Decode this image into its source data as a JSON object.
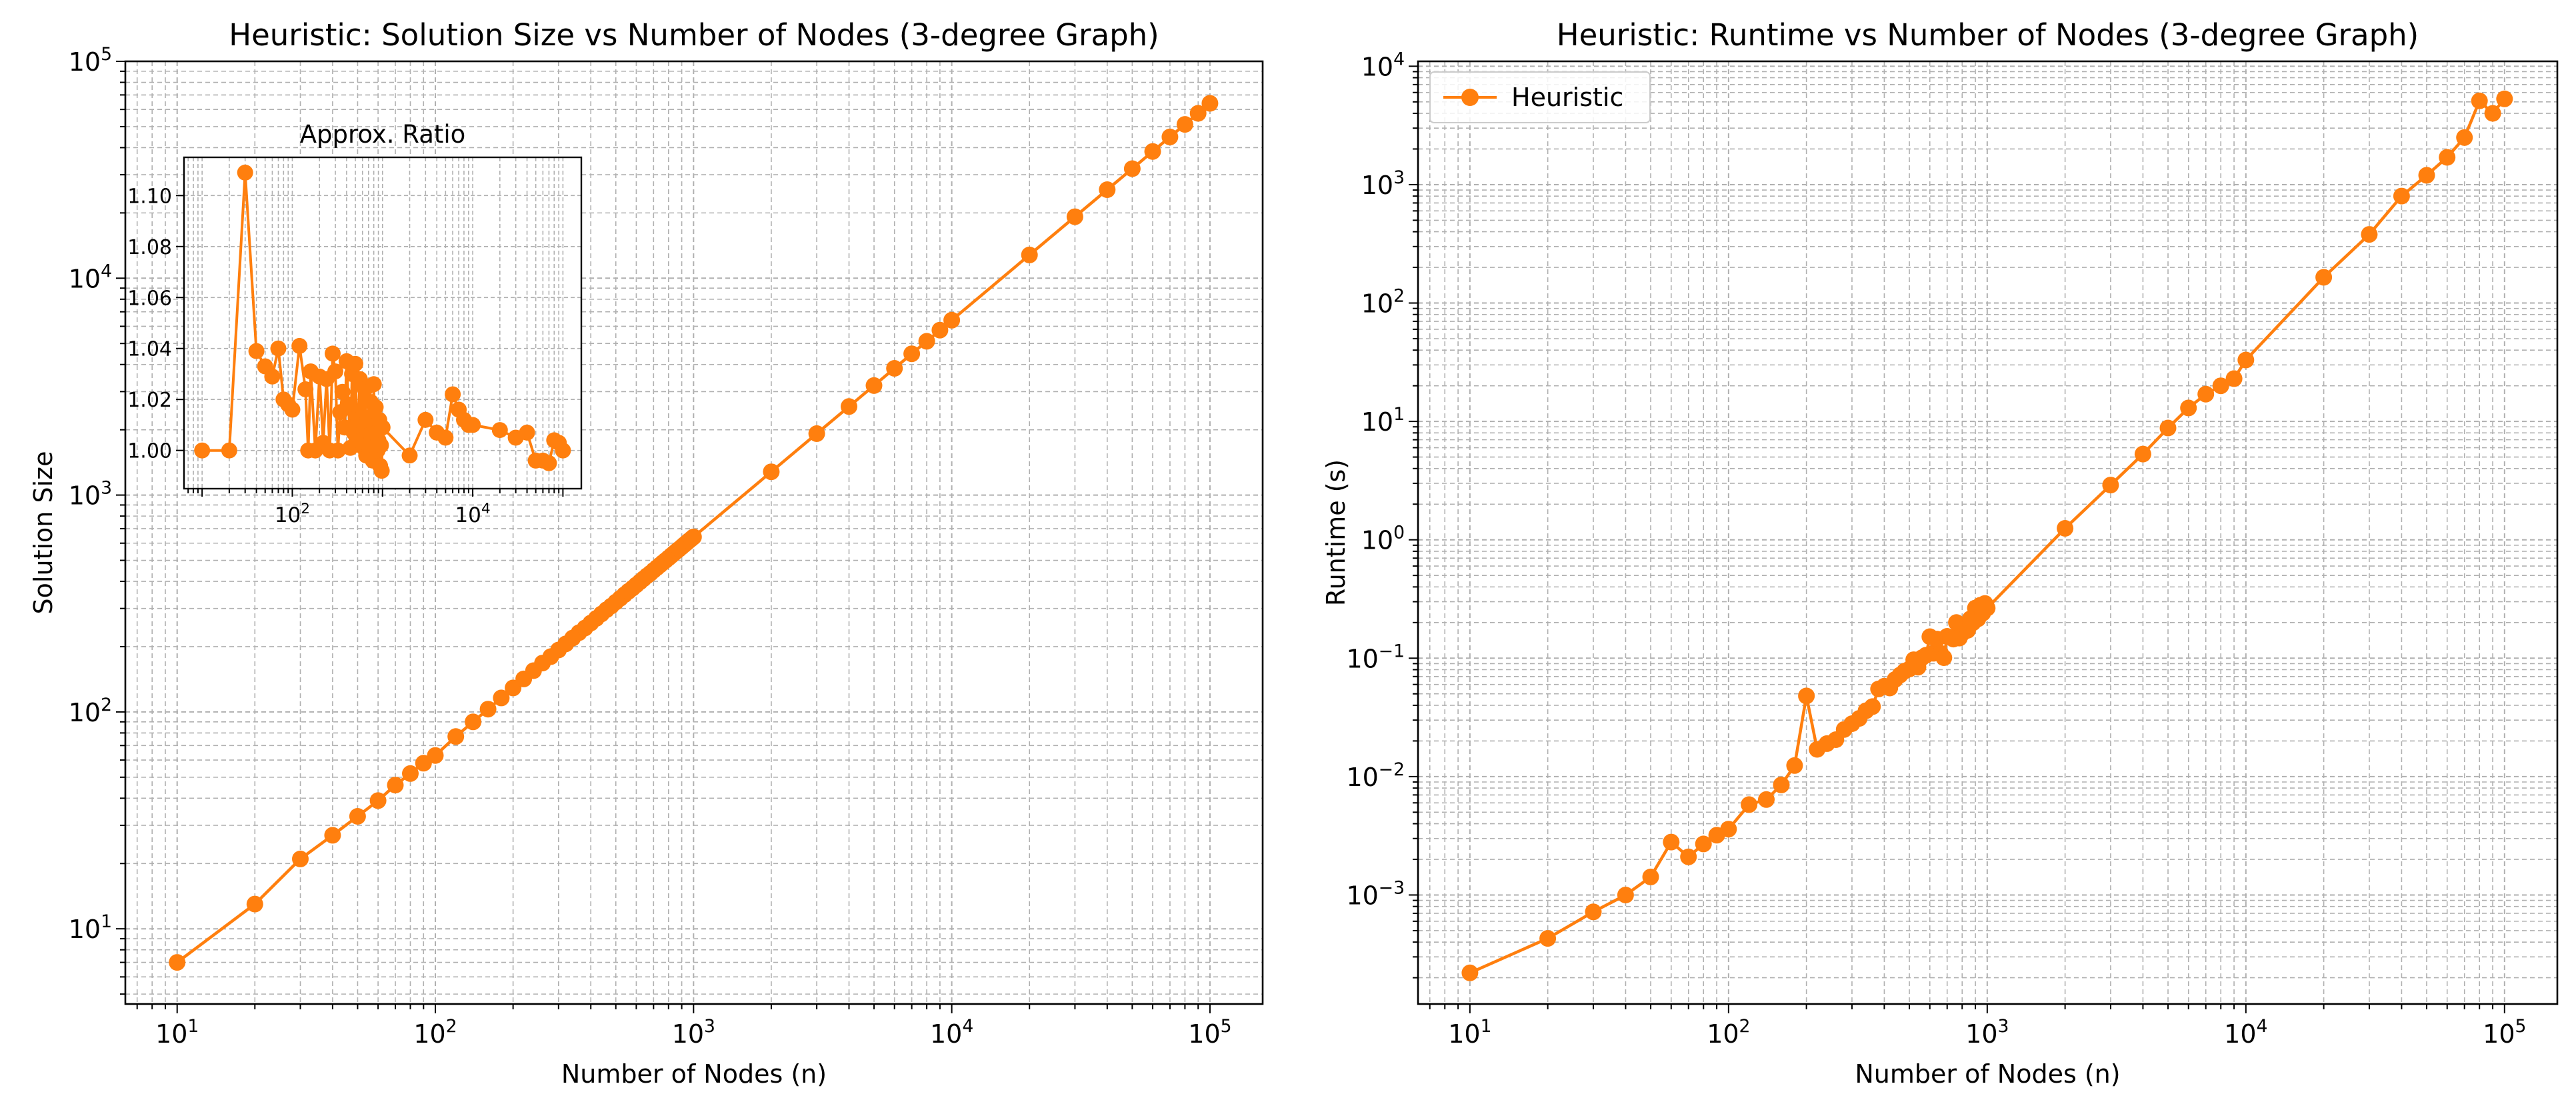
{
  "chart_data": [
    {
      "type": "line",
      "title": "Heuristic: Solution Size vs Number of Nodes (3-degree Graph)",
      "xlabel": "Number of Nodes (n)",
      "ylabel": "Solution Size",
      "xscale": "log",
      "yscale": "log",
      "xlim": [
        6.3,
        160000
      ],
      "ylim": [
        4.5,
        100000
      ],
      "grid": "both",
      "legend": "none",
      "series": [
        {
          "name": "",
          "color": "#ff7f0e",
          "x": [
            10,
            20,
            30,
            40,
            50,
            60,
            70,
            80,
            90,
            100,
            120,
            140,
            160,
            180,
            200,
            220,
            240,
            260,
            280,
            300,
            320,
            340,
            360,
            380,
            400,
            420,
            440,
            460,
            480,
            500,
            520,
            540,
            560,
            580,
            600,
            620,
            640,
            660,
            680,
            700,
            720,
            740,
            760,
            780,
            800,
            820,
            840,
            860,
            880,
            900,
            920,
            940,
            960,
            980,
            1000,
            2000,
            3000,
            4000,
            5000,
            6000,
            7000,
            8000,
            9000,
            10000,
            20000,
            30000,
            40000,
            50000,
            60000,
            70000,
            80000,
            90000,
            100000
          ],
          "y": [
            7,
            13,
            21,
            27,
            33,
            39,
            46,
            52,
            58,
            63,
            77,
            90,
            103,
            116,
            129,
            142,
            155,
            168,
            180,
            193,
            206,
            219,
            232,
            244,
            257,
            270,
            283,
            296,
            308,
            321,
            334,
            347,
            360,
            372,
            385,
            398,
            411,
            424,
            436,
            449,
            462,
            475,
            488,
            500,
            513,
            526,
            539,
            552,
            564,
            577,
            590,
            603,
            616,
            628,
            641,
            1280,
            1920,
            2560,
            3200,
            3840,
            4480,
            5120,
            5760,
            6400,
            12800,
            19200,
            25600,
            32000,
            38400,
            44800,
            51200,
            57600,
            64000
          ]
        }
      ],
      "inset": {
        "title": "Approx. Ratio",
        "xscale": "log",
        "xlim": [
          6.3,
          160000
        ],
        "ylim": [
          0.985,
          1.115
        ],
        "yticks": [
          "1.00",
          "1.02",
          "1.04",
          "1.06",
          "1.08",
          "1.10"
        ],
        "x": [
          10,
          20,
          30,
          40,
          50,
          60,
          70,
          80,
          90,
          100,
          120,
          140,
          150,
          160,
          180,
          200,
          220,
          240,
          260,
          280,
          300,
          320,
          340,
          360,
          380,
          400,
          420,
          440,
          460,
          480,
          500,
          520,
          540,
          560,
          580,
          600,
          620,
          640,
          660,
          680,
          700,
          720,
          740,
          760,
          780,
          800,
          820,
          840,
          860,
          880,
          900,
          920,
          940,
          960,
          980,
          1000,
          2000,
          3000,
          4000,
          5000,
          6000,
          7000,
          8000,
          9000,
          10000,
          20000,
          30000,
          40000,
          50000,
          60000,
          70000,
          80000,
          90000,
          100000
        ],
        "y": [
          1.0,
          1.0,
          1.109,
          1.039,
          1.033,
          1.029,
          1.04,
          1.02,
          1.018,
          1.016,
          1.041,
          1.024,
          1.0,
          1.031,
          1.0,
          1.029,
          1.003,
          1.028,
          1.0,
          1.038,
          1.031,
          1.0,
          1.015,
          1.023,
          1.009,
          1.035,
          1.018,
          1.001,
          1.03,
          1.007,
          1.034,
          1.009,
          1.012,
          1.028,
          1.004,
          1.026,
          1.001,
          1.024,
          0.998,
          1.013,
          1.006,
          1.0,
          1.019,
          1.005,
          0.996,
          1.026,
          1.002,
          1.017,
          1.007,
          1.0,
          1.004,
          1.012,
          0.994,
          1.002,
          0.992,
          1.009,
          0.998,
          1.012,
          1.007,
          1.005,
          1.022,
          1.016,
          1.012,
          1.01,
          1.01,
          1.008,
          1.005,
          1.007,
          0.996,
          0.996,
          0.995,
          1.004,
          1.003,
          1.0
        ]
      }
    },
    {
      "type": "line",
      "title": "Heuristic: Runtime vs Number of Nodes (3-degree Graph)",
      "xlabel": "Number of Nodes (n)",
      "ylabel": "Runtime (s)",
      "xscale": "log",
      "yscale": "log",
      "xlim": [
        6.3,
        160000
      ],
      "ylim": [
        0.00012,
        11000
      ],
      "grid": "both",
      "legend": "upper-left",
      "series": [
        {
          "name": "Heuristic",
          "color": "#ff7f0e",
          "x": [
            10,
            20,
            30,
            40,
            50,
            60,
            70,
            80,
            90,
            100,
            120,
            140,
            160,
            180,
            200,
            220,
            240,
            260,
            280,
            300,
            320,
            340,
            360,
            380,
            400,
            420,
            440,
            460,
            480,
            500,
            520,
            540,
            560,
            580,
            600,
            620,
            640,
            660,
            680,
            700,
            720,
            740,
            760,
            780,
            800,
            820,
            840,
            860,
            880,
            900,
            920,
            940,
            960,
            980,
            1000,
            2000,
            3000,
            4000,
            5000,
            6000,
            7000,
            8000,
            9000,
            10000,
            20000,
            30000,
            40000,
            50000,
            60000,
            70000,
            80000,
            90000,
            100000
          ],
          "y": [
            0.00022,
            0.00043,
            0.00072,
            0.001,
            0.00142,
            0.0028,
            0.0021,
            0.0027,
            0.0032,
            0.0036,
            0.0058,
            0.0064,
            0.0085,
            0.0124,
            0.048,
            0.017,
            0.019,
            0.0205,
            0.025,
            0.028,
            0.031,
            0.036,
            0.039,
            0.055,
            0.058,
            0.056,
            0.066,
            0.072,
            0.078,
            0.081,
            0.097,
            0.084,
            0.101,
            0.106,
            0.152,
            0.11,
            0.145,
            0.11,
            0.101,
            0.153,
            0.15,
            0.145,
            0.2,
            0.148,
            0.162,
            0.176,
            0.172,
            0.215,
            0.199,
            0.265,
            0.215,
            0.28,
            0.24,
            0.29,
            0.265,
            1.25,
            2.9,
            5.3,
            8.8,
            13,
            17,
            20,
            23,
            33,
            165,
            380,
            800,
            1200,
            1700,
            2500,
            5100,
            4000,
            5300
          ]
        }
      ]
    }
  ]
}
